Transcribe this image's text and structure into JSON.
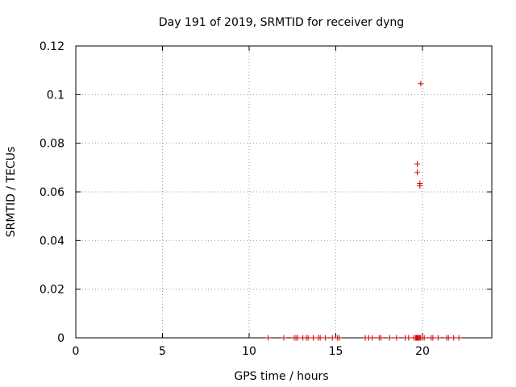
{
  "chart_data": {
    "type": "scatter",
    "title": "Day 191 of 2019, SRMTID for receiver dyng",
    "xlabel": "GPS time / hours",
    "ylabel": "SRMTID / TECUs",
    "xlim": [
      0,
      24
    ],
    "ylim": [
      0,
      0.12
    ],
    "xticks": [
      0,
      5,
      10,
      15,
      20
    ],
    "xtick_labels": [
      "0",
      "5",
      "10",
      "15",
      "20"
    ],
    "yticks": [
      0,
      0.02,
      0.04,
      0.06,
      0.08,
      0.1,
      0.12
    ],
    "ytick_labels": [
      "0",
      "0.02",
      "0.04",
      "0.06",
      "0.08",
      "0.1",
      "0.12"
    ],
    "grid": true,
    "marker": "+",
    "series": [
      {
        "name": "SRMTID",
        "color": "#cc0000",
        "points": [
          [
            11.1,
            0
          ],
          [
            12.0,
            0
          ],
          [
            12.6,
            0
          ],
          [
            12.7,
            0
          ],
          [
            12.8,
            0
          ],
          [
            13.1,
            0
          ],
          [
            13.3,
            0
          ],
          [
            13.4,
            0
          ],
          [
            13.7,
            0
          ],
          [
            14.0,
            0
          ],
          [
            14.1,
            0
          ],
          [
            14.4,
            0
          ],
          [
            14.8,
            0
          ],
          [
            15.1,
            0
          ],
          [
            15.2,
            0
          ],
          [
            16.7,
            0
          ],
          [
            16.9,
            0
          ],
          [
            17.1,
            0
          ],
          [
            17.5,
            0
          ],
          [
            17.6,
            0
          ],
          [
            18.1,
            0
          ],
          [
            18.5,
            0
          ],
          [
            19.0,
            0
          ],
          [
            19.2,
            0
          ],
          [
            19.5,
            0
          ],
          [
            19.6,
            0
          ],
          [
            19.65,
            0
          ],
          [
            19.7,
            0
          ],
          [
            19.75,
            0
          ],
          [
            19.8,
            0
          ],
          [
            19.85,
            0
          ],
          [
            19.9,
            0
          ],
          [
            20.0,
            0
          ],
          [
            20.1,
            0
          ],
          [
            20.5,
            0
          ],
          [
            20.6,
            0
          ],
          [
            20.9,
            0
          ],
          [
            21.4,
            0
          ],
          [
            21.5,
            0
          ],
          [
            21.8,
            0
          ],
          [
            22.1,
            0
          ],
          [
            19.9,
            0.1045
          ],
          [
            19.7,
            0.0715
          ],
          [
            19.7,
            0.068
          ],
          [
            19.85,
            0.0635
          ],
          [
            19.85,
            0.0625
          ]
        ]
      }
    ]
  }
}
